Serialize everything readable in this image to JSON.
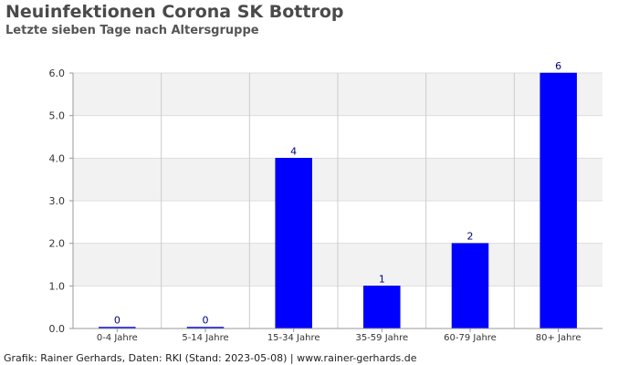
{
  "chart_data": {
    "type": "bar",
    "title": "Neuinfektionen Corona SK Bottrop",
    "subtitle": "Letzte sieben Tage nach Altersgruppe",
    "categories": [
      "0-4 Jahre",
      "5-14 Jahre",
      "15-34 Jahre",
      "35-59 Jahre",
      "60-79 Jahre",
      "80+ Jahre"
    ],
    "values": [
      0,
      0,
      4,
      1,
      2,
      6
    ],
    "data_labels": [
      "0",
      "0",
      "4",
      "1",
      "2",
      "6"
    ],
    "ylim": [
      0,
      6
    ],
    "yticks": [
      0,
      1,
      2,
      3,
      4,
      5,
      6
    ],
    "ytick_labels": [
      "0.0",
      "1.0",
      "2.0",
      "3.0",
      "4.0",
      "5.0",
      "6.0"
    ],
    "xlabel": "",
    "ylabel": "",
    "grid": true,
    "colors": {
      "bar": "#0000ff",
      "band": "#f2f2f2",
      "grid": "#dddddd",
      "label": "#000080",
      "axis": "#999999"
    }
  },
  "footer": "Grafik: Rainer Gerhards, Daten: RKI (Stand: 2023-05-08) | www.rainer-gerhards.de"
}
